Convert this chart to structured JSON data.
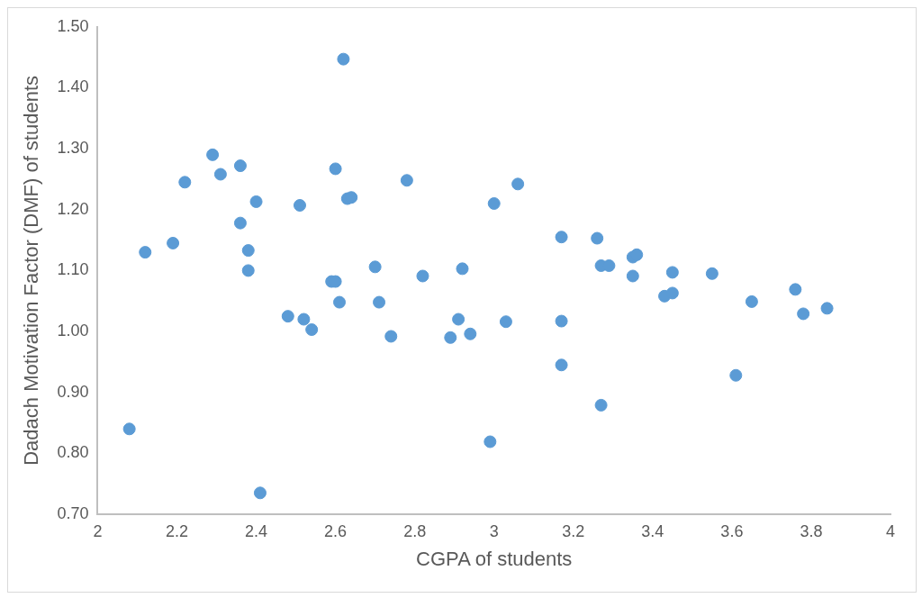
{
  "chart_data": {
    "type": "scatter",
    "xlabel": "CGPA of students",
    "ylabel": "Dadach Motivation Factor (DMF) of students",
    "x": [
      2.08,
      2.12,
      2.19,
      2.22,
      2.29,
      2.31,
      2.36,
      2.36,
      2.38,
      2.38,
      2.4,
      2.41,
      2.48,
      2.51,
      2.52,
      2.54,
      2.59,
      2.6,
      2.6,
      2.61,
      2.62,
      2.63,
      2.64,
      2.7,
      2.71,
      2.74,
      2.78,
      2.82,
      2.89,
      2.91,
      2.92,
      2.94,
      2.99,
      3.0,
      3.03,
      3.06,
      3.17,
      3.17,
      3.17,
      3.26,
      3.27,
      3.27,
      3.29,
      3.35,
      3.36,
      3.35,
      3.43,
      3.45,
      3.45,
      3.55,
      3.61,
      3.65,
      3.76,
      3.78,
      3.84
    ],
    "series": [
      {
        "color": "#5b9bd5",
        "values": [
          0.84,
          1.13,
          1.145,
          1.245,
          1.29,
          1.258,
          1.272,
          1.178,
          1.133,
          1.1,
          1.213,
          0.735,
          1.025,
          1.207,
          1.02,
          1.003,
          1.082,
          1.082,
          1.267,
          1.048,
          1.447,
          1.218,
          1.22,
          1.106,
          1.048,
          0.992,
          1.248,
          1.091,
          0.99,
          1.02,
          1.103,
          0.996,
          0.819,
          1.21,
          1.016,
          1.242,
          1.155,
          1.017,
          0.945,
          1.153,
          1.108,
          0.879,
          1.108,
          1.122,
          1.126,
          1.091,
          1.058,
          1.063,
          1.097,
          1.095,
          0.928,
          1.049,
          1.069,
          1.029,
          1.038
        ]
      }
    ],
    "xlim": [
      2,
      4
    ],
    "xticks": [
      2,
      2.2,
      2.4,
      2.6,
      2.8,
      3,
      3.2,
      3.4,
      3.6,
      3.8,
      4
    ],
    "ylim": [
      0.7,
      1.5
    ],
    "yticks": [
      {
        "value": 0.7,
        "label": "0.70"
      },
      {
        "value": 0.8,
        "label": "0.80"
      },
      {
        "value": 0.9,
        "label": "0.90"
      },
      {
        "value": 1.0,
        "label": "1.00"
      },
      {
        "value": 1.1,
        "label": "1.10"
      },
      {
        "value": 1.2,
        "label": "1.20"
      },
      {
        "value": 1.3,
        "label": "1.30"
      },
      {
        "value": 1.4,
        "label": "1.40"
      },
      {
        "value": 1.5,
        "label": "1.50"
      }
    ],
    "grid": false,
    "legend": false,
    "marker": "circle"
  }
}
